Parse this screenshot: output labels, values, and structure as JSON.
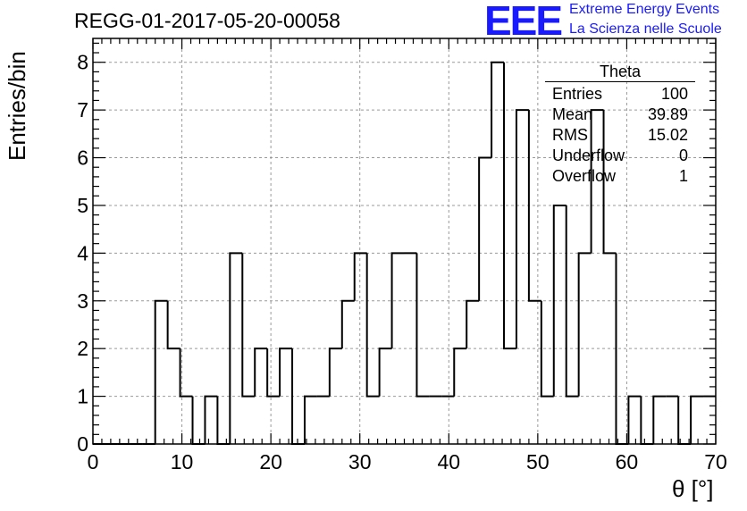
{
  "title": "REGG-01-2017-05-20-00058",
  "logo": {
    "mark": "EEE",
    "line1": "Extreme Energy Events",
    "line2": "La Scienza nelle Scuole",
    "color": "#1a1aff"
  },
  "stats": {
    "title": "Theta",
    "rows": [
      {
        "label": "Entries",
        "value": "100"
      },
      {
        "label": "Mean",
        "value": "39.89"
      },
      {
        "label": "RMS",
        "value": "15.02"
      },
      {
        "label": "Underflow",
        "value": "0"
      },
      {
        "label": "Overflow",
        "value": "1"
      }
    ]
  },
  "chart_data": {
    "type": "bar",
    "style": "step-histogram",
    "xlabel": "θ [°]",
    "ylabel": "Entries/bin",
    "xlim": [
      0,
      70
    ],
    "ylim": [
      0,
      8.5
    ],
    "bin_width": 1.4,
    "bins_start": [
      0,
      1.4,
      2.8,
      4.2,
      5.6,
      7.0,
      8.4,
      9.8,
      11.2,
      12.6,
      14.0,
      15.4,
      16.8,
      18.2,
      19.6,
      21.0,
      22.4,
      23.8,
      25.2,
      26.6,
      28.0,
      29.4,
      30.8,
      32.2,
      33.6,
      35.0,
      36.4,
      37.8,
      39.2,
      40.6,
      42.0,
      43.4,
      44.8,
      46.2,
      47.6,
      49.0,
      50.4,
      51.8,
      53.2,
      54.6,
      56.0,
      57.4,
      58.8,
      60.2,
      61.6,
      63.0,
      64.4,
      65.8,
      67.2,
      68.6
    ],
    "values": [
      0,
      0,
      0,
      0,
      0,
      3,
      2,
      1,
      0,
      1,
      0,
      4,
      1,
      2,
      1,
      2,
      0,
      1,
      1,
      2,
      3,
      4,
      1,
      2,
      4,
      4,
      1,
      1,
      1,
      2,
      3,
      6,
      8,
      2,
      7,
      3,
      1,
      5,
      1,
      4,
      7,
      4,
      0,
      1,
      0,
      1,
      1,
      0,
      1,
      1
    ],
    "xticks": [
      0,
      10,
      20,
      30,
      40,
      50,
      60,
      70
    ],
    "yticks": [
      0,
      1,
      2,
      3,
      4,
      5,
      6,
      7,
      8
    ],
    "grid": true,
    "line_color": "#000000",
    "grid_color": "#999999"
  }
}
